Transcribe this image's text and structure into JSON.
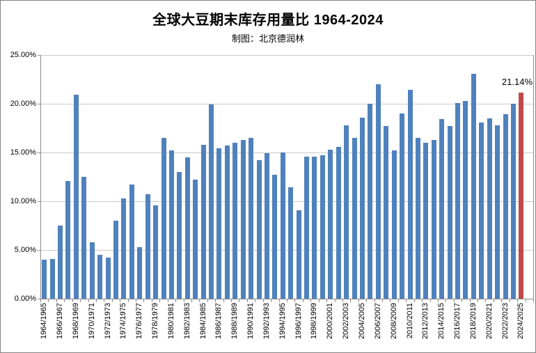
{
  "header": {
    "title": "全球大豆期末库存用量比 1964-2024",
    "subtitle": "制图：北京德润林"
  },
  "chart_data": {
    "type": "bar",
    "title": "全球大豆期末库存用量比 1964-2024",
    "subtitle": "制图：北京德润林",
    "xlabel": "",
    "ylabel": "",
    "ylim": [
      0,
      25
    ],
    "grid": true,
    "legend": "none",
    "y_tick_values": [
      0,
      5,
      10,
      15,
      20,
      25
    ],
    "y_tick_labels": [
      "0.00%",
      "5.00%",
      "10.00%",
      "15.00%",
      "20.00%",
      "25.00%"
    ],
    "x_tick_label_every": 2,
    "bar_color": "#4f81bd",
    "highlight_color": "#be4b48",
    "highlight_index": 60,
    "annotation": {
      "text": "21.14%",
      "category": "2024/2025",
      "value": 21.14
    },
    "categories": [
      "1964/1965",
      "1965/1966",
      "1966/1967",
      "1967/1968",
      "1968/1969",
      "1969/1970",
      "1970/1971",
      "1971/1972",
      "1972/1973",
      "1973/1974",
      "1974/1975",
      "1975/1976",
      "1976/1977",
      "1977/1978",
      "1978/1979",
      "1979/1980",
      "1980/1981",
      "1981/1982",
      "1982/1983",
      "1983/1984",
      "1984/1985",
      "1985/1986",
      "1986/1987",
      "1987/1988",
      "1988/1989",
      "1989/1990",
      "1990/1991",
      "1991/1992",
      "1992/1993",
      "1993/1994",
      "1994/1995",
      "1995/1996",
      "1996/1997",
      "1997/1998",
      "1998/1999",
      "1999/2000",
      "2000/2001",
      "2001/2002",
      "2002/2003",
      "2003/2004",
      "2004/2005",
      "2005/2006",
      "2006/2007",
      "2007/2008",
      "2008/2009",
      "2009/2010",
      "2010/2011",
      "2011/2012",
      "2012/2013",
      "2013/2014",
      "2014/2015",
      "2015/2016",
      "2016/2017",
      "2017/2018",
      "2018/2019",
      "2019/2020",
      "2020/2021",
      "2021/2022",
      "2022/2023",
      "2023/2024",
      "2024/2025"
    ],
    "values": [
      4.0,
      4.1,
      7.5,
      12.1,
      20.9,
      12.5,
      5.8,
      4.5,
      4.2,
      8.0,
      10.3,
      11.7,
      5.3,
      10.7,
      9.6,
      16.5,
      15.2,
      13.0,
      14.5,
      12.2,
      15.8,
      19.9,
      15.4,
      15.7,
      16.0,
      16.3,
      16.5,
      14.2,
      14.9,
      12.7,
      15.0,
      11.4,
      9.1,
      14.6,
      14.6,
      14.7,
      15.3,
      15.6,
      17.8,
      16.5,
      18.6,
      20.0,
      22.0,
      17.7,
      15.2,
      19.0,
      21.4,
      16.5,
      16.0,
      16.3,
      18.4,
      17.7,
      20.1,
      20.3,
      23.1,
      18.1,
      18.5,
      17.8,
      18.9,
      20.0,
      21.14
    ]
  }
}
